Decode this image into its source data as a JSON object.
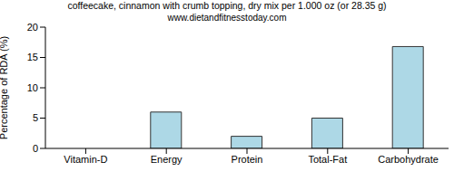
{
  "chart_data": {
    "type": "bar",
    "title": "coffeecake, cinnamon with crumb topping, dry mix per 1.000 oz (or 28.35 g)",
    "subtitle": "www.dietandfitnesstoday.com",
    "y_label": "Percentage of RDA (%)",
    "categories": [
      "Vitamin-D",
      "Energy",
      "Protein",
      "Total-Fat",
      "Carbohydrate"
    ],
    "values": [
      0,
      6,
      2,
      5,
      16.8
    ],
    "color": "#add8e6",
    "ylim": [
      0,
      20
    ],
    "yticks": [
      0,
      5,
      10,
      15,
      20
    ],
    "grid": false
  }
}
